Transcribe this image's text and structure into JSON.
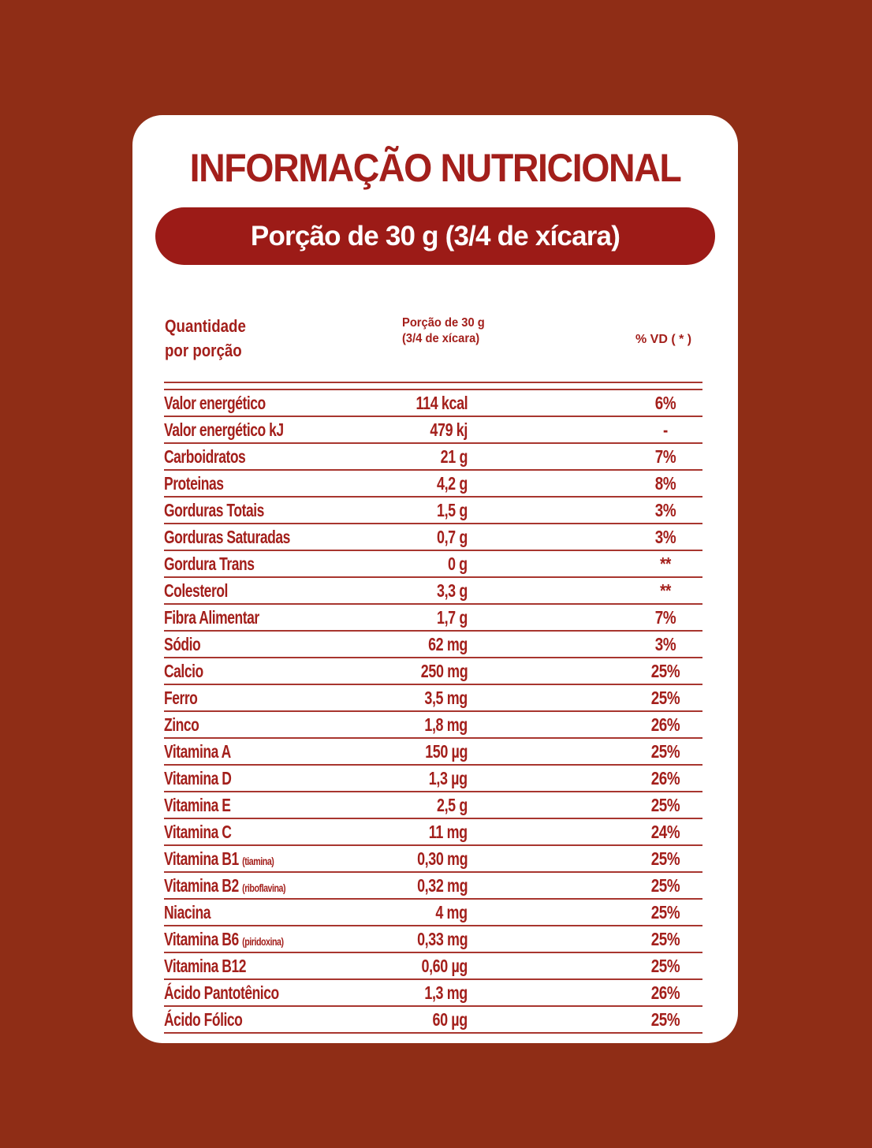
{
  "colors": {
    "background": "#8f2d16",
    "accent": "#a31f1b",
    "bar": "#9c1b17",
    "card": "#ffffff"
  },
  "title": "INFORMAÇÃO NUTRICIONAL",
  "portion_bar": "Porção de 30 g (3/4 de xícara)",
  "header": {
    "qty_line1": "Quantidade",
    "qty_line2": "por porção",
    "portion_line1": "Porção de 30 g",
    "portion_line2": "(3/4 de xícara)",
    "vd": "% VD ( * )"
  },
  "rows": [
    {
      "name": "Valor energético",
      "note": "",
      "value": "114 kcal",
      "vd": "6%"
    },
    {
      "name": "Valor energético kJ",
      "note": "",
      "value": "479 kj",
      "vd": "-"
    },
    {
      "name": "Carboidratos",
      "note": "",
      "value": "21 g",
      "vd": "7%"
    },
    {
      "name": "Proteinas",
      "note": "",
      "value": "4,2 g",
      "vd": "8%"
    },
    {
      "name": "Gorduras Totais",
      "note": "",
      "value": "1,5 g",
      "vd": "3%"
    },
    {
      "name": "Gorduras Saturadas",
      "note": "",
      "value": "0,7 g",
      "vd": "3%"
    },
    {
      "name": "Gordura Trans",
      "note": "",
      "value": "0 g",
      "vd": "**"
    },
    {
      "name": "Colesterol",
      "note": "",
      "value": "3,3 g",
      "vd": "**"
    },
    {
      "name": "Fibra Alimentar",
      "note": "",
      "value": "1,7 g",
      "vd": "7%"
    },
    {
      "name": "Sódio",
      "note": "",
      "value": "62 mg",
      "vd": "3%"
    },
    {
      "name": "Calcio",
      "note": "",
      "value": "250 mg",
      "vd": "25%"
    },
    {
      "name": "Ferro",
      "note": "",
      "value": "3,5 mg",
      "vd": "25%"
    },
    {
      "name": "Zinco",
      "note": "",
      "value": "1,8 mg",
      "vd": "26%"
    },
    {
      "name": "Vitamina A",
      "note": "",
      "value": "150 µg",
      "vd": "25%"
    },
    {
      "name": "Vitamina D",
      "note": "",
      "value": "1,3 µg",
      "vd": "26%"
    },
    {
      "name": "Vitamina E",
      "note": "",
      "value": "2,5 g",
      "vd": "25%"
    },
    {
      "name": "Vitamina C",
      "note": "",
      "value": "11 mg",
      "vd": "24%"
    },
    {
      "name": "Vitamina B1",
      "note": "(tiamina)",
      "value": "0,30 mg",
      "vd": "25%"
    },
    {
      "name": "Vitamina B2",
      "note": "(riboflavina)",
      "value": "0,32 mg",
      "vd": "25%"
    },
    {
      "name": "Niacina",
      "note": "",
      "value": "4 mg",
      "vd": "25%"
    },
    {
      "name": "Vitamina B6",
      "note": "(piridoxina)",
      "value": "0,33 mg",
      "vd": "25%"
    },
    {
      "name": "Vitamina B12",
      "note": "",
      "value": "0,60 µg",
      "vd": "25%"
    },
    {
      "name": "Ácido Pantotênico",
      "note": "",
      "value": "1,3 mg",
      "vd": "26%"
    },
    {
      "name": "Ácido Fólico",
      "note": "",
      "value": "60 µg",
      "vd": "25%"
    }
  ]
}
